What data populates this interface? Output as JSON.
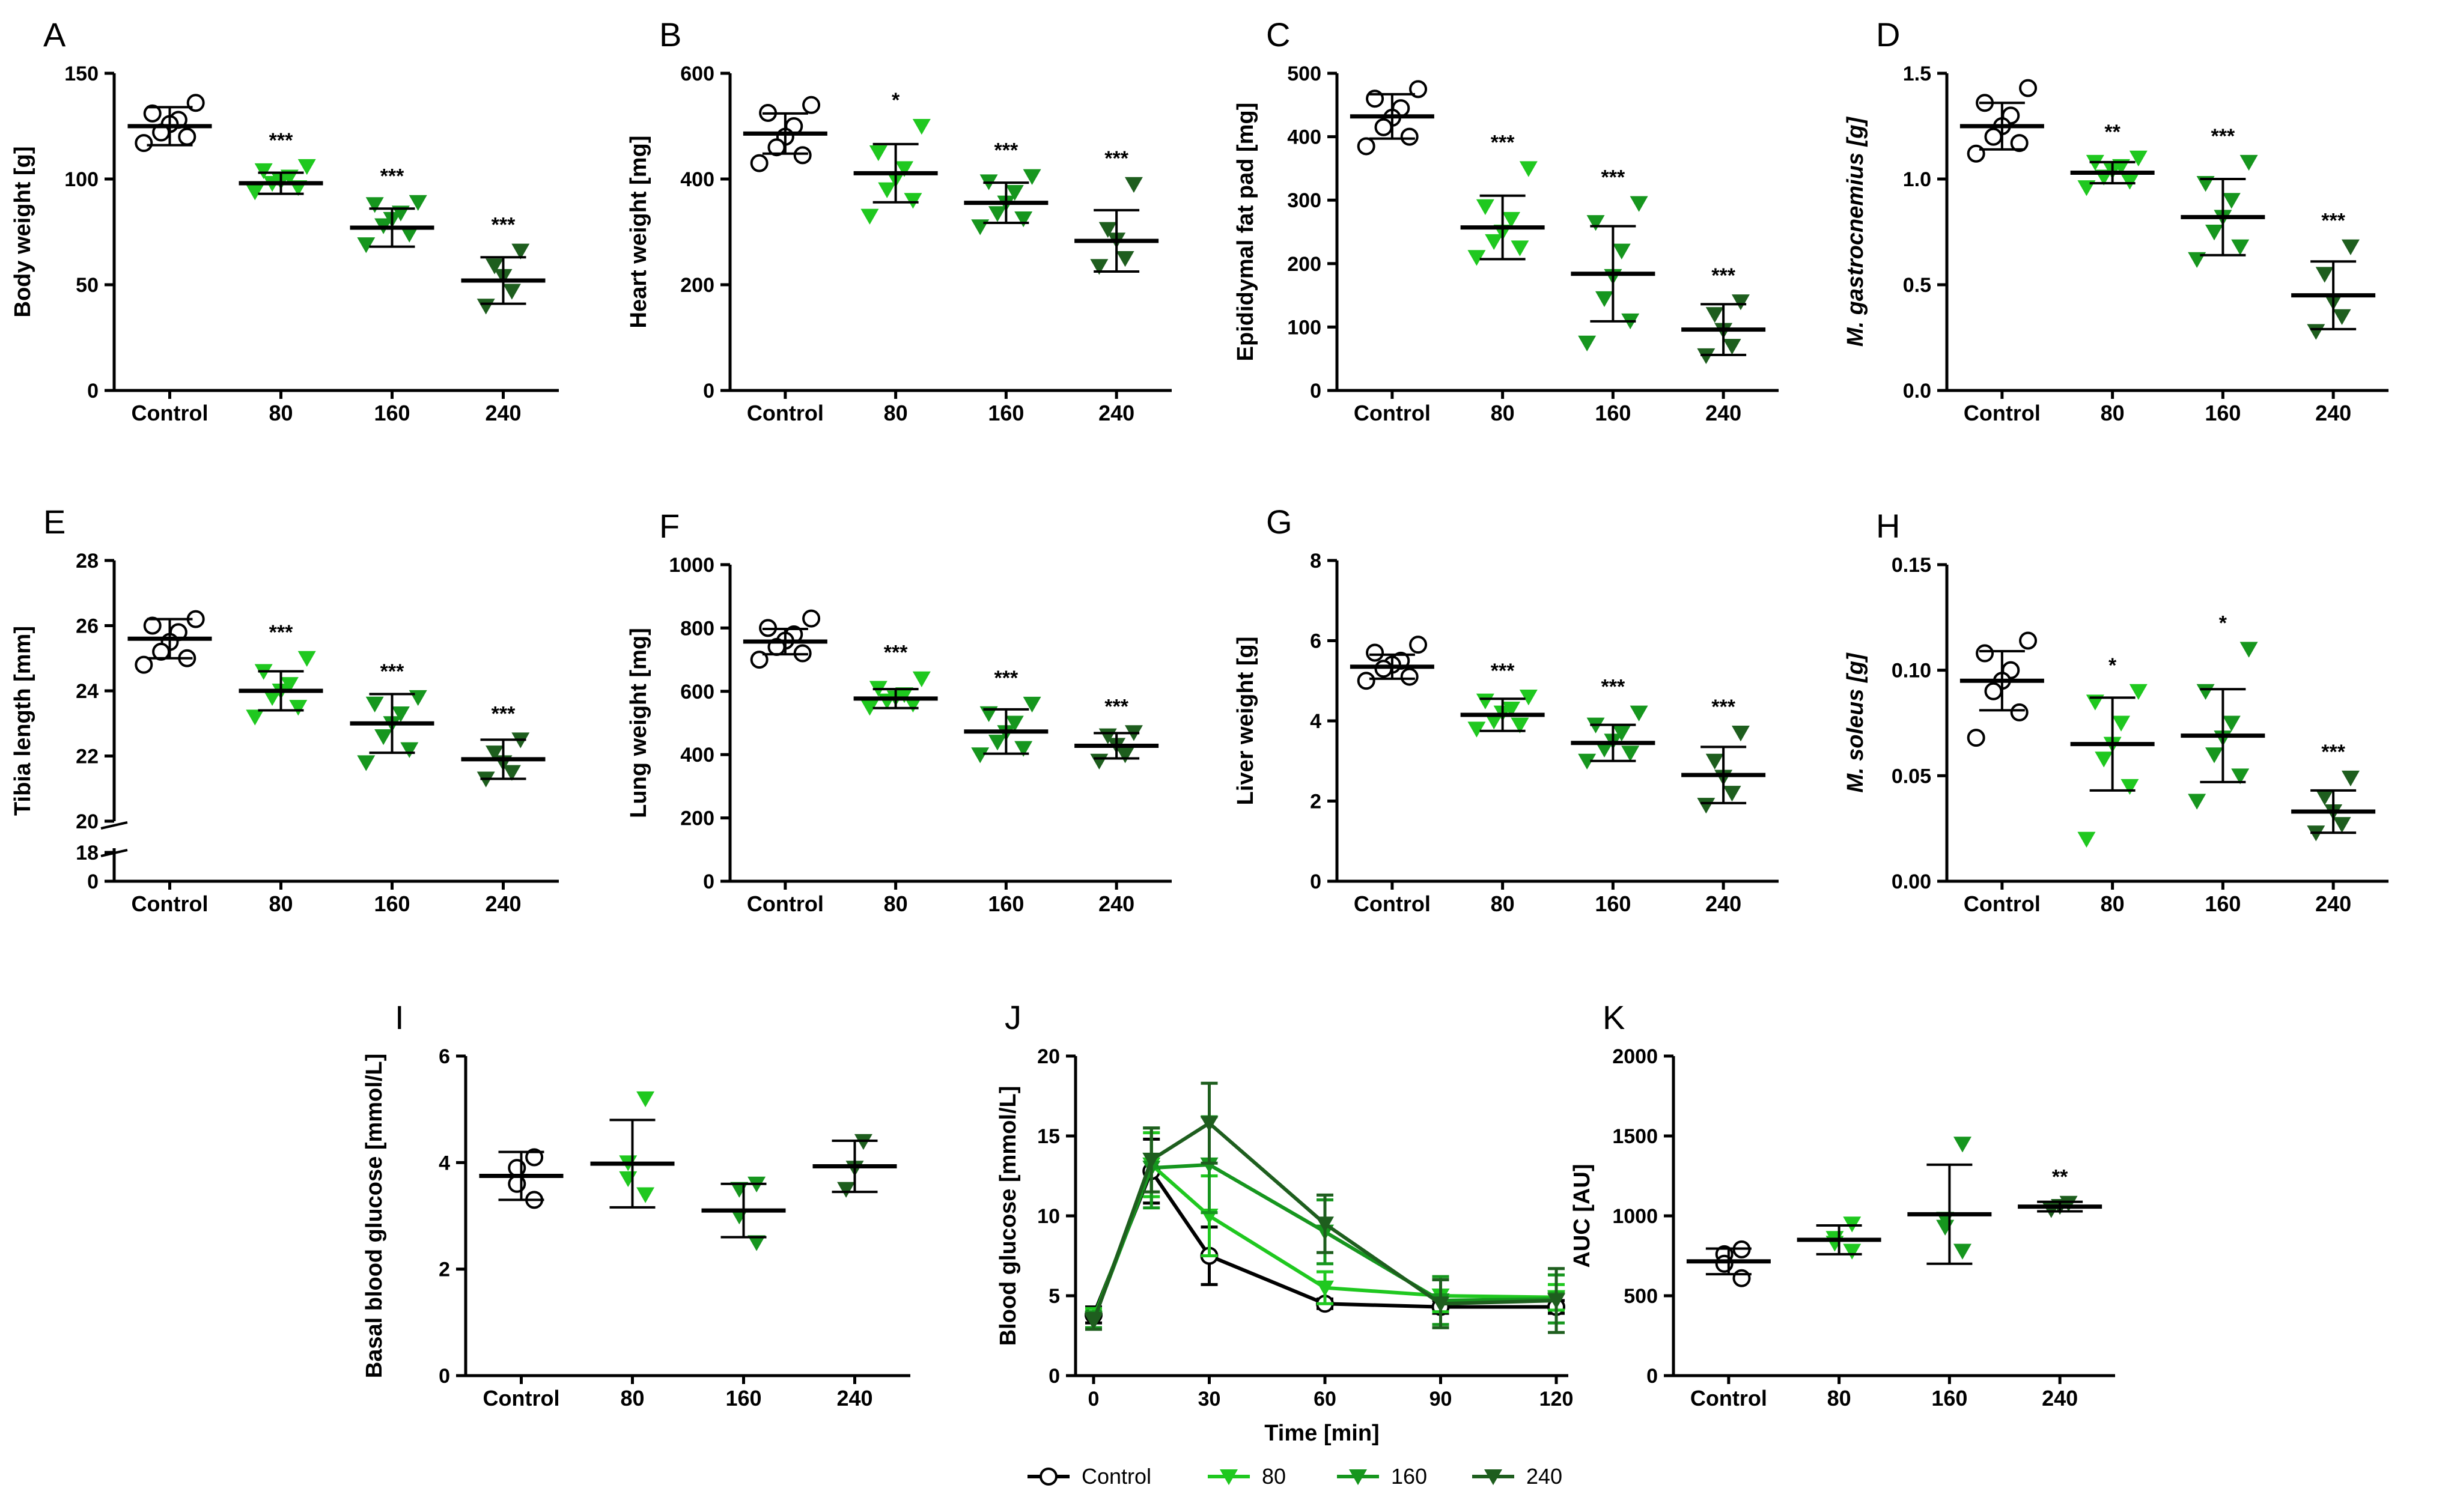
{
  "colors": {
    "control": "#000000",
    "dose80": "#1fc81f",
    "dose160": "#16961e",
    "dose240": "#1e5e1e",
    "axis": "#000000"
  },
  "chart_data": [
    {
      "id": "A",
      "panel_label": "A",
      "type": "scatter",
      "ylabel": "Body weight [g]",
      "ylabel_italic_part": "",
      "yticks": [
        0,
        50,
        100,
        150
      ],
      "ytick_labels": [
        "0",
        "50",
        "100",
        "150"
      ],
      "ylim": [
        0,
        150
      ],
      "categories": [
        "Control",
        "80",
        "160",
        "240"
      ],
      "groups": [
        {
          "name": "Control",
          "points": [
            136,
            131,
            128,
            126,
            122,
            120,
            117
          ],
          "mean": 125,
          "sd": 9,
          "sig": ""
        },
        {
          "name": "80",
          "points": [
            106,
            104,
            101,
            99,
            98,
            96,
            94
          ],
          "mean": 98,
          "sd": 5,
          "sig": "***"
        },
        {
          "name": "160",
          "points": [
            89,
            88,
            84,
            81,
            78,
            74,
            69
          ],
          "mean": 77,
          "sd": 9,
          "sig": "***"
        },
        {
          "name": "240",
          "points": [
            66,
            59,
            54,
            47,
            40
          ],
          "mean": 52,
          "sd": 11,
          "sig": "***"
        }
      ]
    },
    {
      "id": "B",
      "panel_label": "B",
      "type": "scatter",
      "ylabel": "Heart weight [mg]",
      "ylabel_italic_part": "",
      "yticks": [
        0,
        200,
        400,
        600
      ],
      "ytick_labels": [
        "0",
        "200",
        "400",
        "600"
      ],
      "ylim": [
        0,
        600
      ],
      "categories": [
        "Control",
        "80",
        "160",
        "240"
      ],
      "groups": [
        {
          "name": "Control",
          "points": [
            540,
            525,
            500,
            480,
            460,
            445,
            430
          ],
          "mean": 486,
          "sd": 38,
          "sig": ""
        },
        {
          "name": "80",
          "points": [
            500,
            450,
            420,
            400,
            380,
            360,
            330
          ],
          "mean": 411,
          "sd": 55,
          "sig": "*"
        },
        {
          "name": "160",
          "points": [
            405,
            395,
            375,
            355,
            335,
            325,
            310
          ],
          "mean": 355,
          "sd": 38,
          "sig": "***"
        },
        {
          "name": "240",
          "points": [
            390,
            305,
            285,
            250,
            235
          ],
          "mean": 283,
          "sd": 58,
          "sig": "***"
        }
      ]
    },
    {
      "id": "C",
      "panel_label": "C",
      "type": "scatter",
      "ylabel": "Epididymal fat pad [mg]",
      "ylabel_italic_part": "",
      "yticks": [
        0,
        100,
        200,
        300,
        400,
        500
      ],
      "ytick_labels": [
        "0",
        "100",
        "200",
        "300",
        "400",
        "500"
      ],
      "ylim": [
        0,
        500
      ],
      "categories": [
        "Control",
        "80",
        "160",
        "240"
      ],
      "groups": [
        {
          "name": "Control",
          "points": [
            475,
            460,
            445,
            430,
            415,
            400,
            385
          ],
          "mean": 432,
          "sd": 35,
          "sig": ""
        },
        {
          "name": "80",
          "points": [
            350,
            290,
            270,
            250,
            235,
            225,
            210
          ],
          "mean": 257,
          "sd": 50,
          "sig": "***"
        },
        {
          "name": "160",
          "points": [
            295,
            265,
            220,
            180,
            145,
            110,
            75
          ],
          "mean": 184,
          "sd": 75,
          "sig": "***"
        },
        {
          "name": "240",
          "points": [
            140,
            120,
            95,
            70,
            55
          ],
          "mean": 96,
          "sd": 40,
          "sig": "***"
        }
      ]
    },
    {
      "id": "D",
      "panel_label": "D",
      "type": "scatter",
      "ylabel": "M. gastrocnemius [g]",
      "ylabel_italic_part": "M. gastrocnemius",
      "yticks": [
        0,
        0.5,
        1.0,
        1.5
      ],
      "ytick_labels": [
        "0.0",
        "0.5",
        "1.0",
        "1.5"
      ],
      "ylim": [
        0,
        1.5
      ],
      "categories": [
        "Control",
        "80",
        "160",
        "240"
      ],
      "groups": [
        {
          "name": "Control",
          "points": [
            1.43,
            1.36,
            1.3,
            1.25,
            1.2,
            1.17,
            1.12
          ],
          "mean": 1.25,
          "sd": 0.11,
          "sig": ""
        },
        {
          "name": "80",
          "points": [
            1.1,
            1.08,
            1.06,
            1.04,
            1.01,
            0.99,
            0.96
          ],
          "mean": 1.03,
          "sd": 0.05,
          "sig": "**"
        },
        {
          "name": "160",
          "points": [
            1.08,
            0.98,
            0.9,
            0.82,
            0.75,
            0.68,
            0.62
          ],
          "mean": 0.82,
          "sd": 0.18,
          "sig": "***"
        },
        {
          "name": "240",
          "points": [
            0.68,
            0.55,
            0.42,
            0.35,
            0.28
          ],
          "mean": 0.45,
          "sd": 0.16,
          "sig": "***"
        }
      ]
    },
    {
      "id": "E",
      "panel_label": "E",
      "type": "scatter",
      "ylabel": "Tibia length [mm]",
      "ylabel_italic_part": "",
      "yticks": [
        20,
        22,
        24,
        26,
        28
      ],
      "ytick_labels": [
        "20",
        "22",
        "24",
        "26",
        "28"
      ],
      "ylim": [
        20,
        28
      ],
      "broken_axis": true,
      "break_ticks": [
        0,
        18
      ],
      "break_labels": [
        "0",
        "18"
      ],
      "categories": [
        "Control",
        "80",
        "160",
        "240"
      ],
      "groups": [
        {
          "name": "Control",
          "points": [
            26.2,
            26.0,
            25.8,
            25.5,
            25.2,
            25.0,
            24.8
          ],
          "mean": 25.6,
          "sd": 0.6,
          "sig": ""
        },
        {
          "name": "80",
          "points": [
            25.0,
            24.6,
            24.2,
            24.0,
            23.8,
            23.5,
            23.2
          ],
          "mean": 24.0,
          "sd": 0.6,
          "sig": "***"
        },
        {
          "name": "160",
          "points": [
            23.8,
            23.6,
            23.3,
            23.0,
            22.6,
            22.2,
            21.8
          ],
          "mean": 23.0,
          "sd": 0.9,
          "sig": "***"
        },
        {
          "name": "240",
          "points": [
            22.5,
            22.1,
            21.8,
            21.5,
            21.3
          ],
          "mean": 21.9,
          "sd": 0.6,
          "sig": "***"
        }
      ]
    },
    {
      "id": "F",
      "panel_label": "F",
      "type": "scatter",
      "ylabel": "Lung weight [mg]",
      "ylabel_italic_part": "",
      "yticks": [
        0,
        200,
        400,
        600,
        800,
        1000
      ],
      "ytick_labels": [
        "0",
        "200",
        "400",
        "600",
        "800",
        "1000"
      ],
      "ylim": [
        0,
        1000
      ],
      "categories": [
        "Control",
        "80",
        "160",
        "240"
      ],
      "groups": [
        {
          "name": "Control",
          "points": [
            830,
            800,
            780,
            760,
            740,
            720,
            700
          ],
          "mean": 757,
          "sd": 40,
          "sig": ""
        },
        {
          "name": "80",
          "points": [
            640,
            610,
            590,
            580,
            570,
            560,
            550
          ],
          "mean": 577,
          "sd": 30,
          "sig": "***"
        },
        {
          "name": "160",
          "points": [
            560,
            530,
            500,
            470,
            440,
            420,
            400
          ],
          "mean": 473,
          "sd": 70,
          "sig": "***"
        },
        {
          "name": "240",
          "points": [
            470,
            460,
            430,
            400,
            380
          ],
          "mean": 428,
          "sd": 40,
          "sig": "***"
        }
      ]
    },
    {
      "id": "G",
      "panel_label": "G",
      "type": "scatter",
      "ylabel": "Liver weight [g]",
      "ylabel_italic_part": "",
      "yticks": [
        0,
        2,
        4,
        6,
        8
      ],
      "ytick_labels": [
        "0",
        "2",
        "4",
        "6",
        "8"
      ],
      "ylim": [
        0,
        8
      ],
      "categories": [
        "Control",
        "80",
        "160",
        "240"
      ],
      "groups": [
        {
          "name": "Control",
          "points": [
            5.9,
            5.7,
            5.5,
            5.4,
            5.3,
            5.1,
            5.0
          ],
          "mean": 5.35,
          "sd": 0.3,
          "sig": ""
        },
        {
          "name": "80",
          "points": [
            4.6,
            4.5,
            4.3,
            4.2,
            4.0,
            3.9,
            3.8
          ],
          "mean": 4.15,
          "sd": 0.4,
          "sig": "***"
        },
        {
          "name": "160",
          "points": [
            4.2,
            3.9,
            3.7,
            3.5,
            3.3,
            3.2,
            3.0
          ],
          "mean": 3.45,
          "sd": 0.45,
          "sig": "***"
        },
        {
          "name": "240",
          "points": [
            3.7,
            3.0,
            2.6,
            2.2,
            1.9
          ],
          "mean": 2.65,
          "sd": 0.7,
          "sig": "***"
        }
      ]
    },
    {
      "id": "H",
      "panel_label": "H",
      "type": "scatter",
      "ylabel": "M. soleus [g]",
      "ylabel_italic_part": "M. soleus",
      "yticks": [
        0,
        0.05,
        0.1,
        0.15
      ],
      "ytick_labels": [
        "0.00",
        "0.05",
        "0.10",
        "0.15"
      ],
      "ylim": [
        0,
        0.15
      ],
      "categories": [
        "Control",
        "80",
        "160",
        "240"
      ],
      "groups": [
        {
          "name": "Control",
          "points": [
            0.114,
            0.108,
            0.1,
            0.095,
            0.09,
            0.08,
            0.068
          ],
          "mean": 0.095,
          "sd": 0.014,
          "sig": ""
        },
        {
          "name": "80",
          "points": [
            0.09,
            0.085,
            0.075,
            0.065,
            0.058,
            0.045,
            0.02
          ],
          "mean": 0.065,
          "sd": 0.022,
          "sig": "*"
        },
        {
          "name": "160",
          "points": [
            0.11,
            0.09,
            0.075,
            0.068,
            0.06,
            0.05,
            0.038
          ],
          "mean": 0.069,
          "sd": 0.022,
          "sig": "*"
        },
        {
          "name": "240",
          "points": [
            0.049,
            0.04,
            0.033,
            0.027,
            0.023
          ],
          "mean": 0.033,
          "sd": 0.01,
          "sig": "***"
        }
      ]
    },
    {
      "id": "I",
      "panel_label": "I",
      "type": "scatter",
      "ylabel": "Basal blood glucose [mmol/L]",
      "ylabel_italic_part": "",
      "yticks": [
        0,
        2,
        4,
        6
      ],
      "ytick_labels": [
        "0",
        "2",
        "4",
        "6"
      ],
      "ylim": [
        0,
        6
      ],
      "categories": [
        "Control",
        "80",
        "160",
        "240"
      ],
      "groups": [
        {
          "name": "Control",
          "points": [
            4.1,
            3.9,
            3.6,
            3.3
          ],
          "mean": 3.75,
          "sd": 0.45,
          "sig": ""
        },
        {
          "name": "80",
          "points": [
            5.2,
            4.0,
            3.7,
            3.4
          ],
          "mean": 3.98,
          "sd": 0.82,
          "sig": ""
        },
        {
          "name": "160",
          "points": [
            3.6,
            3.5,
            3.0,
            2.5
          ],
          "mean": 3.1,
          "sd": 0.5,
          "sig": ""
        },
        {
          "name": "240",
          "points": [
            4.4,
            3.9,
            3.5
          ],
          "mean": 3.93,
          "sd": 0.48,
          "sig": ""
        }
      ]
    },
    {
      "id": "J",
      "panel_label": "J",
      "type": "line",
      "xlabel": "Time [min]",
      "ylabel": "Blood glucose [mmol/L]",
      "x": [
        0,
        15,
        30,
        60,
        90,
        120
      ],
      "xticks": [
        0,
        30,
        60,
        90,
        120
      ],
      "xtick_labels": [
        "0",
        "30",
        "60",
        "90",
        "120"
      ],
      "xlim": [
        0,
        120
      ],
      "yticks": [
        0,
        5,
        10,
        15,
        20
      ],
      "ytick_labels": [
        "0",
        "5",
        "10",
        "15",
        "20"
      ],
      "ylim": [
        0,
        20
      ],
      "series": [
        {
          "name": "Control",
          "values": [
            3.8,
            12.8,
            7.5,
            4.5,
            4.3,
            4.3
          ],
          "errors": [
            0.5,
            2.0,
            1.8,
            0.3,
            0.4,
            0.4
          ]
        },
        {
          "name": "80",
          "values": [
            3.6,
            13.2,
            10.0,
            5.5,
            5.0,
            4.9
          ],
          "errors": [
            0.6,
            2.0,
            2.5,
            1.0,
            1.0,
            0.8
          ]
        },
        {
          "name": "160",
          "values": [
            3.5,
            13.0,
            13.2,
            9.0,
            4.7,
            4.8
          ],
          "errors": [
            0.5,
            2.5,
            3.0,
            2.0,
            1.5,
            1.5
          ]
        },
        {
          "name": "240",
          "values": [
            3.4,
            13.5,
            15.8,
            9.5,
            4.5,
            4.7
          ],
          "errors": [
            0.5,
            2.0,
            2.5,
            1.8,
            1.5,
            2.0
          ]
        }
      ],
      "legend": [
        "Control",
        "80",
        "160",
        "240"
      ],
      "legend_position": "bottom"
    },
    {
      "id": "K",
      "panel_label": "K",
      "type": "scatter",
      "ylabel": "AUC [AU]",
      "ylabel_italic_part": "",
      "yticks": [
        0,
        500,
        1000,
        1500,
        2000
      ],
      "ytick_labels": [
        "0",
        "500",
        "1000",
        "1500",
        "2000"
      ],
      "ylim": [
        0,
        2000
      ],
      "categories": [
        "Control",
        "80",
        "160",
        "240"
      ],
      "groups": [
        {
          "name": "Control",
          "points": [
            790,
            760,
            700,
            610
          ],
          "mean": 715,
          "sd": 80,
          "sig": ""
        },
        {
          "name": "80",
          "points": [
            950,
            860,
            830,
            780
          ],
          "mean": 850,
          "sd": 90,
          "sig": ""
        },
        {
          "name": "160",
          "points": [
            1450,
            980,
            930,
            780
          ],
          "mean": 1010,
          "sd": 310,
          "sig": ""
        },
        {
          "name": "240",
          "points": [
            1080,
            1060,
            1040
          ],
          "mean": 1058,
          "sd": 30,
          "sig": "**"
        }
      ]
    }
  ]
}
